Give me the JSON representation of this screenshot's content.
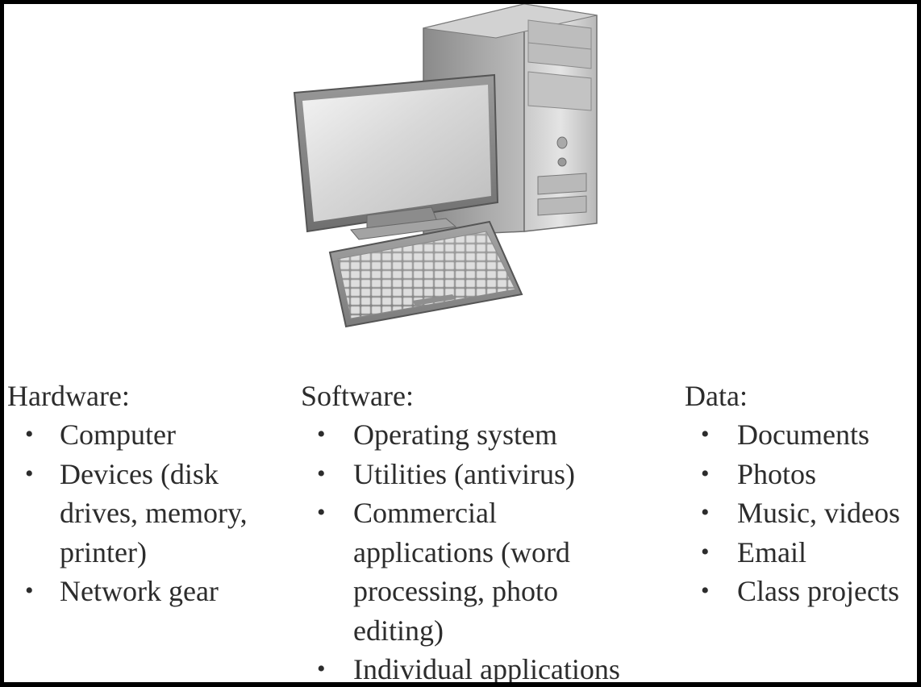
{
  "figure": {
    "image": "desktop-computer-illustration",
    "columns": [
      {
        "key": "hardware",
        "title": "Hardware:",
        "items": [
          [
            "Computer"
          ],
          [
            "Devices (disk",
            "drives, memory,",
            "printer)"
          ],
          [
            "Network gear"
          ]
        ]
      },
      {
        "key": "software",
        "title": "Software:",
        "items": [
          [
            "Operating system"
          ],
          [
            "Utilities (antivirus)"
          ],
          [
            "Commercial",
            "applications (word",
            "processing, photo",
            "editing)"
          ],
          [
            "Individual applications"
          ]
        ]
      },
      {
        "key": "data",
        "title": "Data:",
        "items": [
          [
            "Documents"
          ],
          [
            "Photos"
          ],
          [
            "Music, videos"
          ],
          [
            "Email"
          ],
          [
            "Class projects"
          ]
        ]
      }
    ]
  }
}
